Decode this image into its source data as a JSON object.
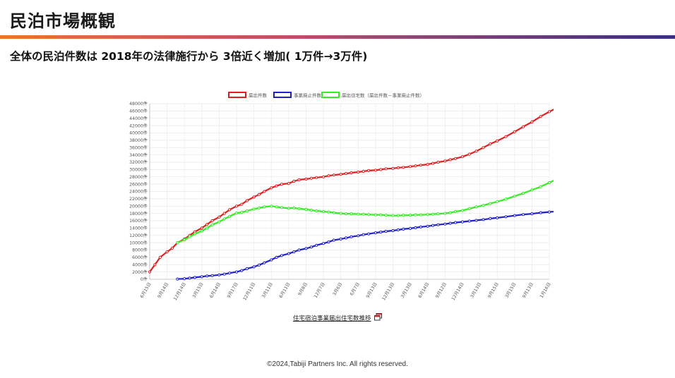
{
  "header": {
    "title": "民泊市場概観",
    "subtitle": "全体の民泊件数は 2018年の法律施行から 3倍近く増加( 1万件→3万件)"
  },
  "link": {
    "label": "住宅宿泊事業届出住宅数推移"
  },
  "footer": {
    "copyright": "©2024,Tabiji Partners Inc. All rights reserved."
  },
  "colors": {
    "accent_orange": "#e8752f",
    "accent_purple": "#3a2d8c"
  },
  "chart_data": {
    "type": "line",
    "ylim": [
      0,
      48000
    ],
    "y_ticks": [
      "0件",
      "2000件",
      "4000件",
      "6000件",
      "8000件",
      "10000件",
      "12000件",
      "14000件",
      "16000件",
      "18000件",
      "20000件",
      "22000件",
      "24000件",
      "26000件",
      "28000件",
      "30000件",
      "32000件",
      "34000件",
      "36000件",
      "38000件",
      "40000件",
      "42000件",
      "44000件",
      "46000件",
      "48000件"
    ],
    "x_labels": [
      "6月15日",
      "9月14日",
      "12月14日",
      "3月15日",
      "6月14日",
      "9月17日",
      "12月11日",
      "3月11日",
      "6月11日",
      "9月8日",
      "12月7日",
      "3月6日",
      "6月7日",
      "9月13日",
      "12月13日",
      "3月13日",
      "6月14日",
      "9月12日",
      "12月14日",
      "3月13日",
      "9月15日",
      "3月15日",
      "9月13日",
      "1月16日"
    ],
    "legend_position": "top",
    "grid": true,
    "series": [
      {
        "name": "届出件数",
        "color": "#e02020",
        "points": [
          [
            0,
            2000
          ],
          [
            0.3,
            4000
          ],
          [
            0.6,
            6000
          ],
          [
            1,
            7500
          ],
          [
            1.3,
            8500
          ],
          [
            1.6,
            10000
          ],
          [
            2,
            11000
          ],
          [
            2.3,
            12000
          ],
          [
            2.6,
            13000
          ],
          [
            3,
            14000
          ],
          [
            3.3,
            15000
          ],
          [
            3.6,
            16000
          ],
          [
            4,
            17000
          ],
          [
            4.3,
            18000
          ],
          [
            4.6,
            19000
          ],
          [
            5,
            20000
          ],
          [
            5.3,
            20500
          ],
          [
            5.6,
            21500
          ],
          [
            6,
            22500
          ],
          [
            6.3,
            23200
          ],
          [
            6.6,
            24000
          ],
          [
            7,
            25000
          ],
          [
            7.3,
            25500
          ],
          [
            7.6,
            26000
          ],
          [
            8,
            26200
          ],
          [
            8.3,
            26800
          ],
          [
            8.6,
            27200
          ],
          [
            9,
            27400
          ],
          [
            9.3,
            27600
          ],
          [
            9.6,
            27800
          ],
          [
            10,
            28000
          ],
          [
            10.3,
            28300
          ],
          [
            10.6,
            28500
          ],
          [
            11,
            28700
          ],
          [
            11.3,
            28900
          ],
          [
            11.6,
            29100
          ],
          [
            12,
            29300
          ],
          [
            12.3,
            29500
          ],
          [
            12.6,
            29700
          ],
          [
            13,
            29800
          ],
          [
            13.3,
            30000
          ],
          [
            13.6,
            30200
          ],
          [
            14,
            30300
          ],
          [
            14.3,
            30500
          ],
          [
            14.6,
            30600
          ],
          [
            15,
            30800
          ],
          [
            15.3,
            31000
          ],
          [
            15.6,
            31200
          ],
          [
            16,
            31400
          ],
          [
            16.3,
            31700
          ],
          [
            16.6,
            32000
          ],
          [
            17,
            32300
          ],
          [
            17.3,
            32700
          ],
          [
            17.6,
            33000
          ],
          [
            18,
            33500
          ],
          [
            18.4,
            34200
          ],
          [
            18.8,
            35000
          ],
          [
            19.2,
            36000
          ],
          [
            19.6,
            37000
          ],
          [
            20,
            37800
          ],
          [
            20.5,
            39000
          ],
          [
            21,
            40300
          ],
          [
            21.5,
            41700
          ],
          [
            22,
            43000
          ],
          [
            22.5,
            44500
          ],
          [
            23,
            45800
          ],
          [
            23.5,
            47000
          ]
        ]
      },
      {
        "name": "事業廃止件数",
        "color": "#2020c8",
        "points": [
          [
            1.6,
            50
          ],
          [
            2,
            150
          ],
          [
            2.3,
            300
          ],
          [
            2.6,
            500
          ],
          [
            3,
            700
          ],
          [
            3.3,
            900
          ],
          [
            3.6,
            1000
          ],
          [
            4,
            1200
          ],
          [
            4.3,
            1400
          ],
          [
            4.6,
            1700
          ],
          [
            5,
            2000
          ],
          [
            5.3,
            2400
          ],
          [
            5.6,
            2900
          ],
          [
            6,
            3400
          ],
          [
            6.3,
            3900
          ],
          [
            6.6,
            4500
          ],
          [
            7,
            5300
          ],
          [
            7.3,
            6000
          ],
          [
            7.6,
            6500
          ],
          [
            8,
            7000
          ],
          [
            8.3,
            7500
          ],
          [
            8.6,
            8000
          ],
          [
            9,
            8400
          ],
          [
            9.3,
            8800
          ],
          [
            9.6,
            9300
          ],
          [
            10,
            9800
          ],
          [
            10.3,
            10200
          ],
          [
            10.6,
            10700
          ],
          [
            11,
            11000
          ],
          [
            11.3,
            11300
          ],
          [
            11.6,
            11600
          ],
          [
            12,
            11900
          ],
          [
            12.3,
            12200
          ],
          [
            12.6,
            12400
          ],
          [
            13,
            12700
          ],
          [
            13.3,
            12900
          ],
          [
            13.6,
            13100
          ],
          [
            14,
            13300
          ],
          [
            14.3,
            13500
          ],
          [
            14.6,
            13700
          ],
          [
            15,
            13900
          ],
          [
            15.3,
            14100
          ],
          [
            15.6,
            14300
          ],
          [
            16,
            14500
          ],
          [
            16.3,
            14700
          ],
          [
            16.6,
            14900
          ],
          [
            17,
            15100
          ],
          [
            17.3,
            15300
          ],
          [
            17.6,
            15500
          ],
          [
            18,
            15700
          ],
          [
            18.4,
            15900
          ],
          [
            18.8,
            16100
          ],
          [
            19.2,
            16300
          ],
          [
            19.6,
            16600
          ],
          [
            20,
            16800
          ],
          [
            20.5,
            17100
          ],
          [
            21,
            17400
          ],
          [
            21.5,
            17700
          ],
          [
            22,
            17900
          ],
          [
            22.5,
            18200
          ],
          [
            23,
            18400
          ],
          [
            23.5,
            18600
          ]
        ]
      },
      {
        "name": "届出住宅数（届出件数－事業廃止件数）",
        "color": "#33ee22",
        "points": [
          [
            1.6,
            10000
          ],
          [
            2,
            10800
          ],
          [
            2.3,
            11600
          ],
          [
            2.6,
            12400
          ],
          [
            3,
            13200
          ],
          [
            3.3,
            14000
          ],
          [
            3.6,
            14900
          ],
          [
            4,
            15700
          ],
          [
            4.3,
            16500
          ],
          [
            4.6,
            17200
          ],
          [
            5,
            18100
          ],
          [
            5.3,
            18300
          ],
          [
            5.6,
            18700
          ],
          [
            6,
            19200
          ],
          [
            6.3,
            19500
          ],
          [
            6.6,
            19800
          ],
          [
            7,
            20000
          ],
          [
            7.3,
            19800
          ],
          [
            7.6,
            19600
          ],
          [
            8,
            19400
          ],
          [
            8.3,
            19500
          ],
          [
            8.6,
            19300
          ],
          [
            9,
            19100
          ],
          [
            9.3,
            18900
          ],
          [
            9.6,
            18700
          ],
          [
            10,
            18500
          ],
          [
            10.3,
            18400
          ],
          [
            10.6,
            18200
          ],
          [
            11,
            18000
          ],
          [
            11.3,
            17900
          ],
          [
            11.6,
            17900
          ],
          [
            12,
            17800
          ],
          [
            12.3,
            17800
          ],
          [
            12.6,
            17700
          ],
          [
            13,
            17600
          ],
          [
            13.3,
            17600
          ],
          [
            13.6,
            17500
          ],
          [
            14,
            17400
          ],
          [
            14.3,
            17400
          ],
          [
            14.6,
            17500
          ],
          [
            15,
            17500
          ],
          [
            15.3,
            17600
          ],
          [
            15.6,
            17600
          ],
          [
            16,
            17700
          ],
          [
            16.3,
            17800
          ],
          [
            16.6,
            17900
          ],
          [
            17,
            18000
          ],
          [
            17.3,
            18200
          ],
          [
            17.6,
            18500
          ],
          [
            18,
            18800
          ],
          [
            18.4,
            19300
          ],
          [
            18.8,
            19800
          ],
          [
            19.2,
            20200
          ],
          [
            19.6,
            20700
          ],
          [
            20,
            21200
          ],
          [
            20.5,
            21900
          ],
          [
            21,
            22700
          ],
          [
            21.5,
            23500
          ],
          [
            22,
            24400
          ],
          [
            22.5,
            25300
          ],
          [
            23,
            26400
          ],
          [
            23.5,
            27500
          ]
        ]
      }
    ]
  }
}
